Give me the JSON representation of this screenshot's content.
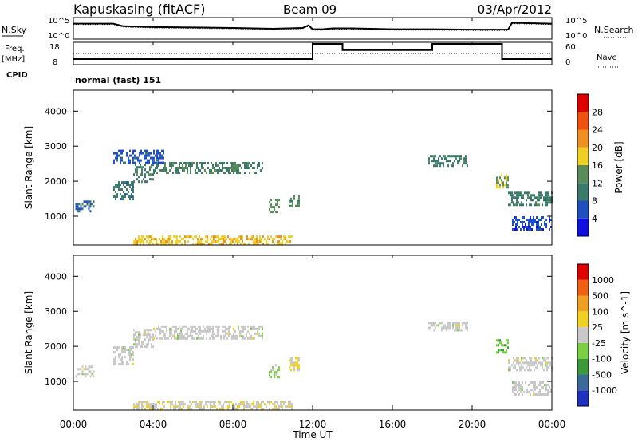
{
  "header": {
    "station": "Kapuskasing (fitACF)",
    "beam": "Beam 09",
    "date": "03/Apr/2012"
  },
  "strip": {
    "nsky_label": "N.Sky",
    "nsearch_label": "N.Search",
    "noise_ticks": {
      "top": "10^5",
      "bottom": "10^0"
    },
    "freq_label": "Freq.",
    "freq_unit": "[MHz]",
    "freq_ticks": {
      "top": "18",
      "bottom": "8"
    },
    "nave_label": "Nave",
    "nave_ticks": {
      "top": "60",
      "bottom": "0"
    },
    "cpid_label": "CPID",
    "cpid_value": "normal (fast) 151"
  },
  "xaxis": {
    "label": "Time UT",
    "ticks": [
      "00:00",
      "04:00",
      "08:00",
      "12:00",
      "16:00",
      "20:00",
      "00:00"
    ]
  },
  "power_panel": {
    "ylabel": "Slant Range [km]",
    "yticks": [
      "1000",
      "2000",
      "3000",
      "4000"
    ],
    "cbar_label": "Power [dB]",
    "cbar_ticks": [
      "4",
      "8",
      "12",
      "16",
      "20",
      "24",
      "28"
    ],
    "cbar_colors": [
      "#1010e0",
      "#2050c0",
      "#3a7a6a",
      "#5a8c5a",
      "#f0d020",
      "#f09020",
      "#f05010",
      "#e00000"
    ]
  },
  "velocity_panel": {
    "ylabel": "Slant Range [km]",
    "yticks": [
      "1000",
      "2000",
      "3000",
      "4000"
    ],
    "cbar_label": "Velocity [m s^-1]",
    "cbar_ticks": [
      "1000",
      "500",
      "100",
      "25",
      "-25",
      "-100",
      "-500",
      "-1000"
    ],
    "cbar_colors": [
      "#2030c0",
      "#3a6a9a",
      "#3a9a3a",
      "#7ad040",
      "#c8c8c8",
      "#f0d020",
      "#f0a020",
      "#f06010",
      "#e00000"
    ]
  },
  "chart_data": [
    {
      "type": "line",
      "name": "noise-strip",
      "x_hours": [
        0,
        2,
        2.5,
        4,
        6,
        8,
        10,
        11.5,
        11.8,
        12,
        12.5,
        13,
        14,
        16,
        18,
        20,
        21,
        21.8,
        22,
        24
      ],
      "series": [
        {
          "name": "N.Sky",
          "values": [
            3.6,
            3.6,
            3.0,
            2.8,
            2.7,
            2.6,
            2.4,
            2.6,
            3.2,
            2.3,
            2.3,
            2.5,
            2.5,
            2.3,
            2.3,
            2.2,
            2.2,
            2.2,
            3.8,
            3.6
          ]
        },
        {
          "name": "N.Search",
          "values": [
            3.4,
            3.4,
            2.8,
            2.6,
            2.5,
            2.4,
            2.2,
            2.4,
            3.0,
            2.1,
            2.1,
            2.3,
            2.3,
            2.1,
            2.1,
            2.0,
            2.0,
            2.0,
            3.6,
            3.4
          ]
        }
      ],
      "ylim": [
        0,
        5
      ]
    },
    {
      "type": "line",
      "name": "frequency-nave-strip",
      "x_hours": [
        0,
        12,
        12.0,
        13.5,
        13.5,
        18,
        18,
        21.5,
        21.5,
        24
      ],
      "series": [
        {
          "name": "Freq",
          "values": [
            10.5,
            10.5,
            17.3,
            17.3,
            14.5,
            14.5,
            17.3,
            17.3,
            10.5,
            10.5
          ]
        },
        {
          "name": "Nave",
          "values": [
            30,
            30,
            30,
            30,
            30,
            30,
            30,
            30,
            30,
            30
          ]
        }
      ],
      "ylim": [
        8,
        18
      ]
    },
    {
      "type": "heatmap",
      "name": "power",
      "xlim": [
        0,
        24
      ],
      "ylim": [
        180,
        4600
      ],
      "value_range": [
        0,
        30
      ],
      "regions": [
        {
          "x": [
            0.1,
            1.0
          ],
          "y": [
            1150,
            1450
          ],
          "value": 7
        },
        {
          "x": [
            2.0,
            3.0
          ],
          "y": [
            1500,
            2000
          ],
          "value": 9
        },
        {
          "x": [
            3.0,
            4.0
          ],
          "y": [
            2000,
            2500
          ],
          "value": 10
        },
        {
          "x": [
            4.0,
            9.5
          ],
          "y": [
            2250,
            2550
          ],
          "value": 11
        },
        {
          "x": [
            2.0,
            4.5
          ],
          "y": [
            2500,
            2900
          ],
          "value": 6
        },
        {
          "x": [
            9.8,
            10.3
          ],
          "y": [
            1150,
            1500
          ],
          "value": 13
        },
        {
          "x": [
            10.8,
            11.3
          ],
          "y": [
            1300,
            1600
          ],
          "value": 12
        },
        {
          "x": [
            17.8,
            19.8
          ],
          "y": [
            2450,
            2750
          ],
          "value": 10
        },
        {
          "x": [
            21.2,
            21.8
          ],
          "y": [
            1800,
            2200
          ],
          "value": 15
        },
        {
          "x": [
            21.8,
            24.0
          ],
          "y": [
            1300,
            1700
          ],
          "value": 10
        },
        {
          "x": [
            22.0,
            24.0
          ],
          "y": [
            600,
            1000
          ],
          "value": 5
        },
        {
          "x": [
            3.0,
            11.0
          ],
          "y": [
            200,
            450
          ],
          "value": 18
        }
      ]
    },
    {
      "type": "heatmap",
      "name": "velocity",
      "xlim": [
        0,
        24
      ],
      "ylim": [
        180,
        4600
      ],
      "value_range": [
        -1000,
        1000
      ],
      "regions": [
        {
          "x": [
            0.1,
            1.0
          ],
          "y": [
            1150,
            1450
          ],
          "value": 0
        },
        {
          "x": [
            2.0,
            3.0
          ],
          "y": [
            1500,
            2000
          ],
          "value": 0
        },
        {
          "x": [
            3.0,
            4.0
          ],
          "y": [
            2000,
            2500
          ],
          "value": 0
        },
        {
          "x": [
            4.0,
            9.5
          ],
          "y": [
            2250,
            2600
          ],
          "value": 0
        },
        {
          "x": [
            9.8,
            10.3
          ],
          "y": [
            1150,
            1500
          ],
          "value": 200
        },
        {
          "x": [
            10.8,
            11.3
          ],
          "y": [
            1300,
            1700
          ],
          "value": -120
        },
        {
          "x": [
            17.8,
            19.8
          ],
          "y": [
            2450,
            2700
          ],
          "value": 0
        },
        {
          "x": [
            21.2,
            21.8
          ],
          "y": [
            1800,
            2200
          ],
          "value": 300
        },
        {
          "x": [
            21.8,
            24.0
          ],
          "y": [
            1300,
            1700
          ],
          "value": 0
        },
        {
          "x": [
            22.0,
            24.0
          ],
          "y": [
            600,
            1000
          ],
          "value": 0
        },
        {
          "x": [
            3.0,
            11.0
          ],
          "y": [
            200,
            450
          ],
          "value": -80
        }
      ]
    }
  ]
}
